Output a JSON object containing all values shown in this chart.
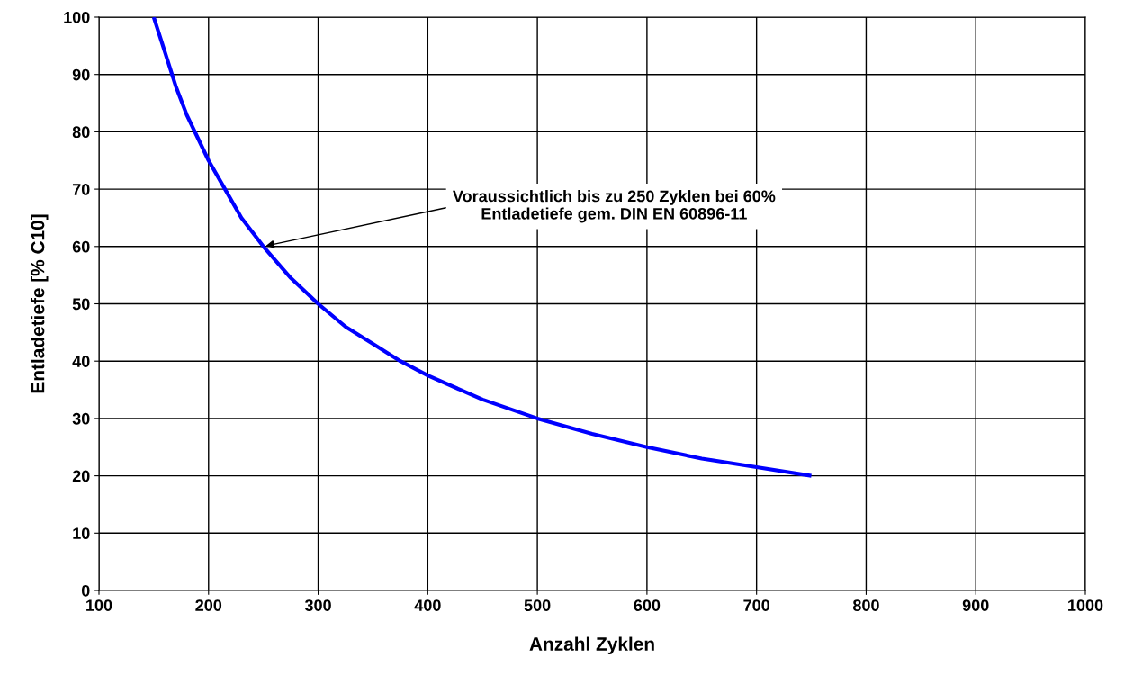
{
  "chart_data": {
    "type": "line",
    "xlabel": "Anzahl Zyklen",
    "ylabel": "Entladetiefe [% C10]",
    "series": [
      {
        "color": "#0000ff",
        "x": [
          150,
          160,
          170,
          180,
          190,
          200,
          215,
          230,
          250,
          275,
          300,
          325,
          350,
          375,
          400,
          450,
          500,
          550,
          600,
          650,
          700,
          750
        ],
        "values": [
          100,
          94,
          88,
          83,
          79,
          75,
          70,
          65,
          60,
          54.5,
          50,
          46,
          43,
          40,
          37.5,
          33.3,
          30,
          27.3,
          25,
          23,
          21.5,
          20
        ]
      }
    ],
    "xlim": [
      100,
      1000
    ],
    "xticks": [
      100,
      200,
      300,
      400,
      500,
      600,
      700,
      800,
      900,
      1000
    ],
    "ylim": [
      0,
      100
    ],
    "yticks": [
      0,
      10,
      20,
      30,
      40,
      50,
      60,
      70,
      80,
      90,
      100
    ],
    "grid": true,
    "marker": "none",
    "line_style": "solid",
    "annotations": [
      {
        "text": "Voraussichtlich bis zu 250 Zyklen bei 60%\nEntladetiefe gem. DIN EN 60896-11",
        "x": 250,
        "y": 60
      }
    ]
  }
}
